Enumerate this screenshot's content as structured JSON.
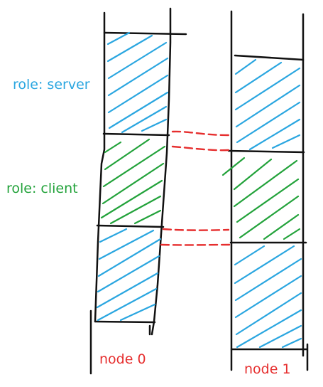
{
  "labels": {
    "role_server": "role: server",
    "role_client": "role: client",
    "node0": "node 0",
    "node1": "node 1"
  },
  "colors": {
    "server": "#2aa6e0",
    "client": "#22a23a",
    "link": "#e62e2e",
    "ink": "#111111"
  }
}
